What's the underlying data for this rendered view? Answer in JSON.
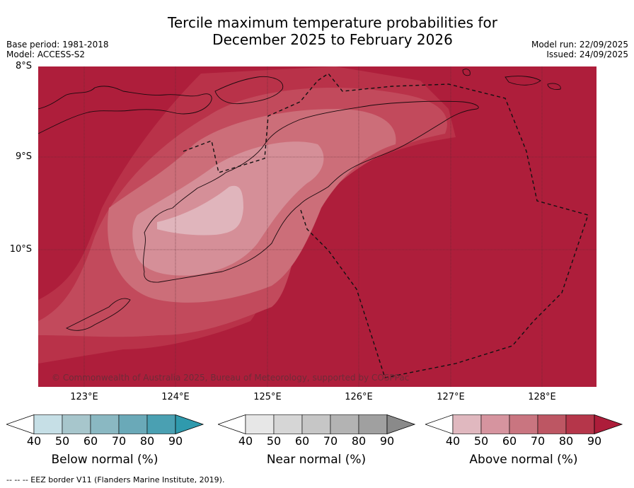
{
  "title_line1": "Tercile maximum temperature probabilities for",
  "title_line2": "December 2025 to February 2026",
  "meta_left": {
    "base_period": "Base period: 1981-2018",
    "model": "Model: ACCESS-S2"
  },
  "meta_right": {
    "model_run": "Model run: 22/09/2025",
    "issued": "Issued: 24/09/2025"
  },
  "lat_labels": [
    "8°S",
    "9°S",
    "10°S"
  ],
  "lon_labels": [
    "123°E",
    "124°E",
    "125°E",
    "126°E",
    "127°E",
    "128°E"
  ],
  "copyright": "© Commonwealth of Australia 2025, Bureau of Meteorology, supported by COSPPac",
  "colorbars": [
    {
      "name": "Below normal (%)",
      "ticks": [
        "40",
        "50",
        "60",
        "70",
        "80",
        "90"
      ],
      "colors": [
        "#ffffff",
        "#c6dfe6",
        "#a7c6cc",
        "#8ab8c2",
        "#6aa9b8",
        "#4aa0b2",
        "#2f9aad"
      ]
    },
    {
      "name": "Near normal (%)",
      "ticks": [
        "40",
        "50",
        "60",
        "70",
        "80",
        "90"
      ],
      "colors": [
        "#ffffff",
        "#e7e7e7",
        "#d6d6d6",
        "#c6c6c6",
        "#b3b3b3",
        "#a0a0a0",
        "#8a8a8a"
      ]
    },
    {
      "name": "Above normal (%)",
      "ticks": [
        "40",
        "50",
        "60",
        "70",
        "80",
        "90"
      ],
      "colors": [
        "#ffffff",
        "#e0b8bf",
        "#d6949f",
        "#c97580",
        "#bd5663",
        "#b5364a",
        "#ad1d3a"
      ]
    }
  ],
  "footer": "--  --  -- EEZ border V11 (Flanders Marine Institute, 2019).",
  "map_colors": {
    "c90": "#ae1e3b",
    "c80": "#b93249",
    "c70": "#c24a5c",
    "c60": "#cc6e79",
    "c50": "#d58f98"
  }
}
